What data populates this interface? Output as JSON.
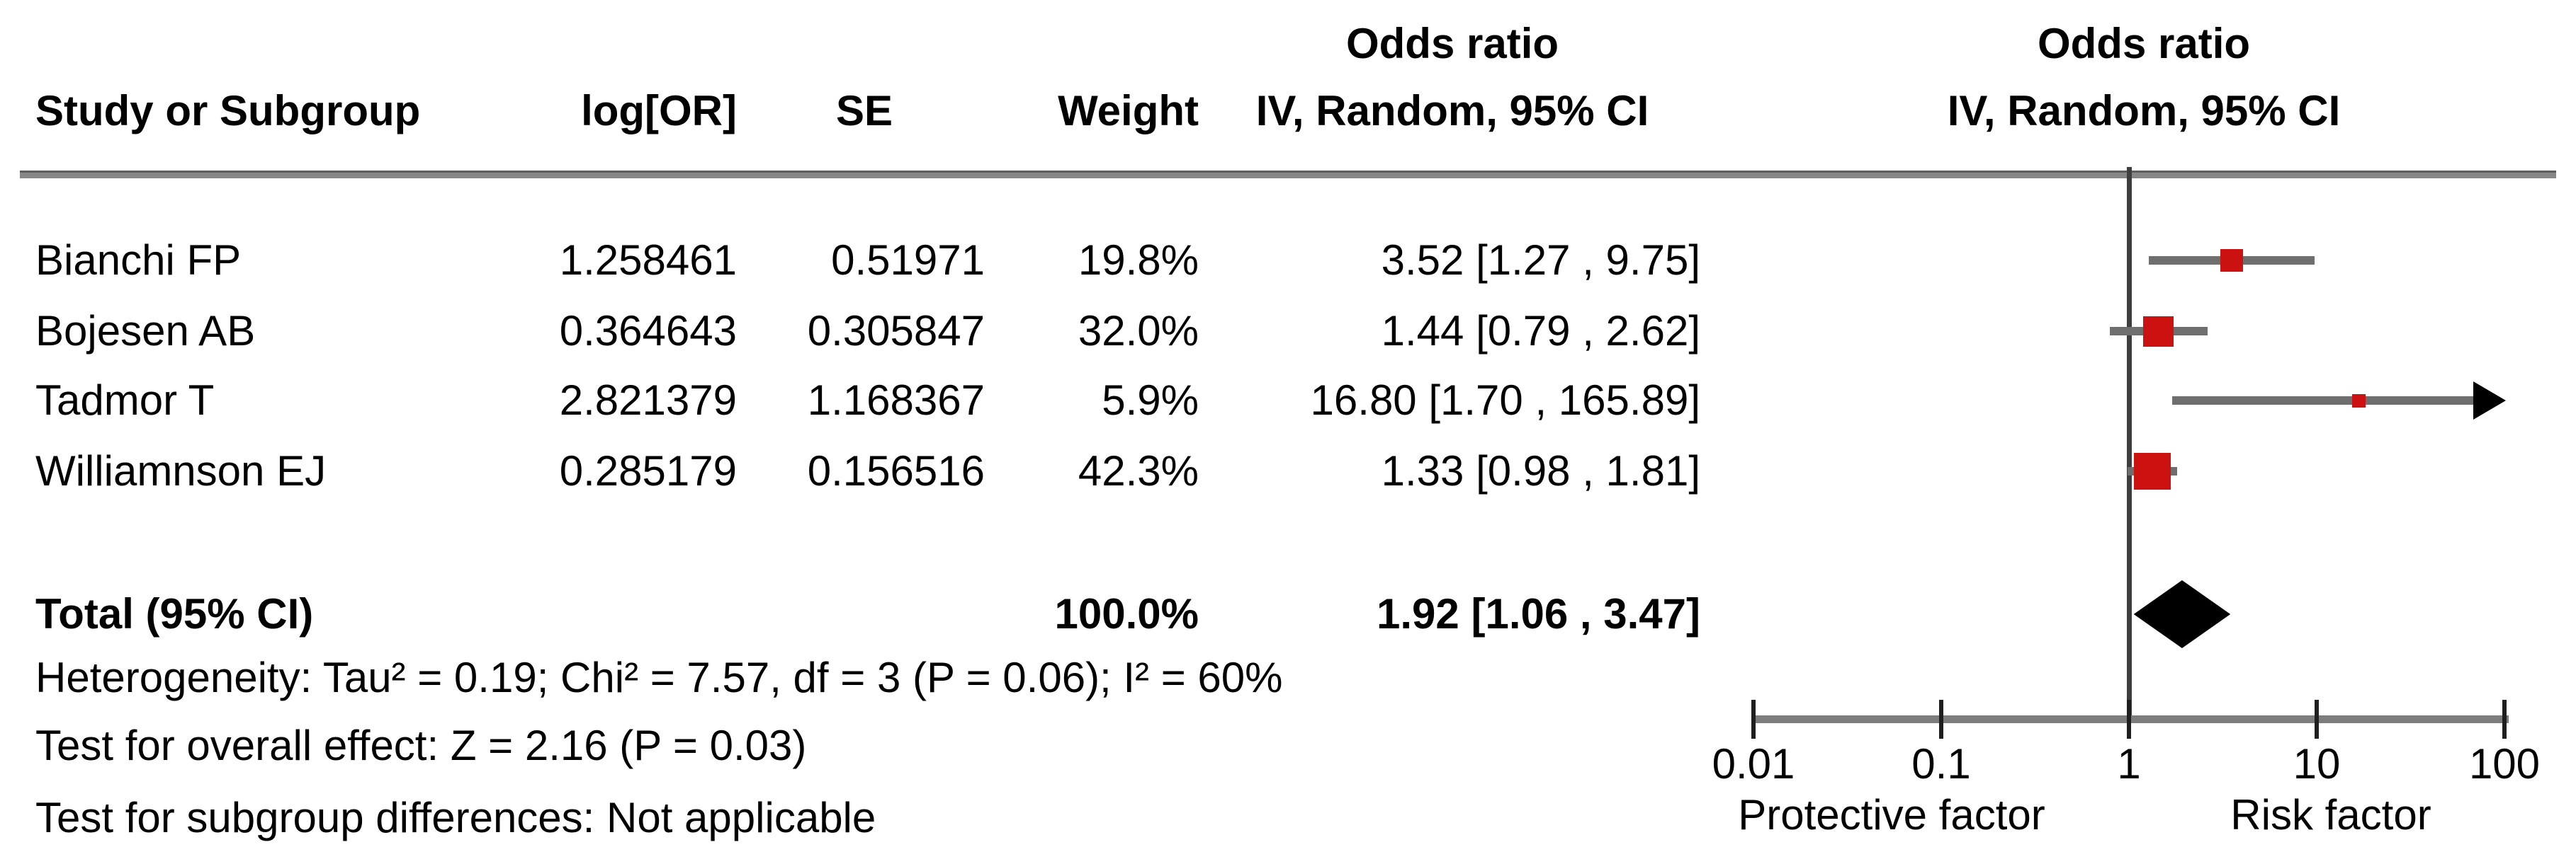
{
  "table": {
    "columns": {
      "study": "Study or Subgroup",
      "log_or": "log[OR]",
      "se": "SE",
      "weight": "Weight",
      "effect": {
        "line1": "Odds ratio",
        "line2": "IV, Random, 95% CI"
      }
    },
    "plot_header": {
      "line1": "Odds ratio",
      "line2": "IV, Random, 95% CI"
    }
  },
  "chart_data": {
    "type": "forest",
    "effect_measure": "Odds ratio",
    "model": "IV, Random, 95% CI",
    "x_axis": {
      "scale": "log",
      "ticks": [
        0.01,
        0.1,
        1,
        10,
        100
      ],
      "tick_labels": [
        "0.01",
        "0.1",
        "1",
        "10",
        "100"
      ],
      "null_value": 1,
      "left_label": "Protective factor",
      "right_label": "Risk factor"
    },
    "studies": [
      {
        "name": "Bianchi FP",
        "log_or": "1.258461",
        "se": "0.51971",
        "weight": "19.8%",
        "weight_pct": 19.8,
        "or": 3.52,
        "ci_low": 1.27,
        "ci_high": 9.75,
        "ci_text": "3.52 [1.27 , 9.75]"
      },
      {
        "name": "Bojesen AB",
        "log_or": "0.364643",
        "se": "0.305847",
        "weight": "32.0%",
        "weight_pct": 32.0,
        "or": 1.44,
        "ci_low": 0.79,
        "ci_high": 2.62,
        "ci_text": "1.44 [0.79 , 2.62]"
      },
      {
        "name": "Tadmor T",
        "log_or": "2.821379",
        "se": "1.168367",
        "weight": "5.9%",
        "weight_pct": 5.9,
        "or": 16.8,
        "ci_low": 1.7,
        "ci_high": 165.89,
        "ci_text": "16.80 [1.70 , 165.89]"
      },
      {
        "name": "Williamnson EJ",
        "log_or": "0.285179",
        "se": "0.156516",
        "weight": "42.3%",
        "weight_pct": 42.3,
        "or": 1.33,
        "ci_low": 0.98,
        "ci_high": 1.81,
        "ci_text": "1.33 [0.98 , 1.81]"
      }
    ],
    "total": {
      "label": "Total (95% CI)",
      "weight": "100.0%",
      "or": 1.92,
      "ci_low": 1.06,
      "ci_high": 3.47,
      "ci_text": "1.92 [1.06 , 3.47]"
    },
    "footnotes": {
      "heterogeneity": "Heterogeneity: Tau² = 0.19; Chi² = 7.57, df = 3 (P = 0.06); I² = 60%",
      "overall_effect": "Test for overall effect: Z = 2.16 (P = 0.03)",
      "subgroup": "Test for subgroup differences: Not applicable"
    },
    "colors": {
      "marker": "#cc1111",
      "ci_line": "#6e6e6e",
      "diamond": "#000000",
      "axis": "#7d7d7d",
      "null_line": "#3e3e3e",
      "text": "#000000"
    }
  }
}
